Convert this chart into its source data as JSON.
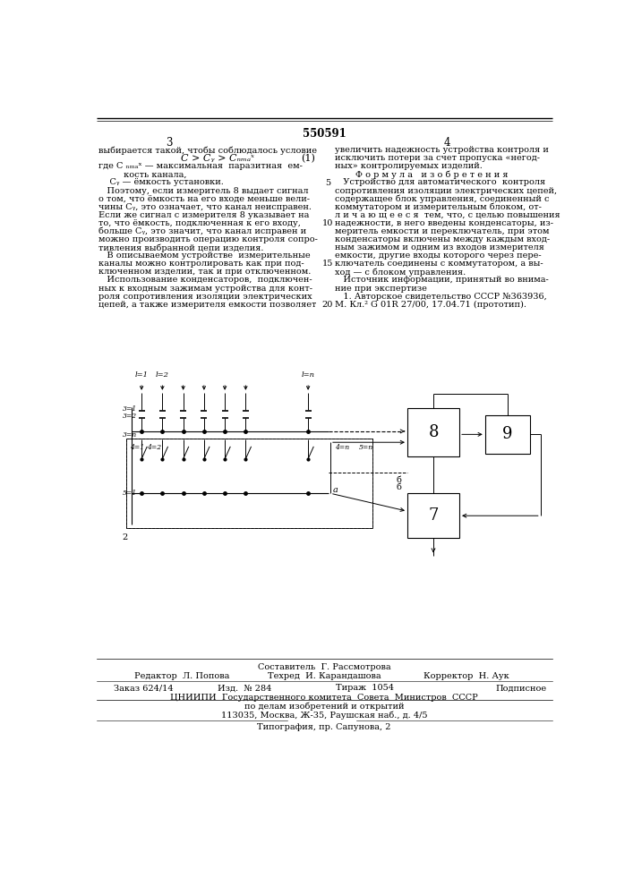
{
  "title": "550591",
  "page_numbers": [
    "3",
    "4"
  ],
  "col1_lines": [
    "выбирается такой, чтобы соблюдалось условие"
  ],
  "col1_formula": "C > Cᵧ > Cₙₘₐˣ",
  "col1_formula_num": "(1)",
  "col1_lines2": [
    "где C ₙₘₐˣ — максимальная  паразитная  ем-",
    "         кость канала,",
    "    Cᵧ — ёмкость установки.",
    "   Поэтому, если измеритель 8 выдает сигнал",
    "о том, что ёмкость на его входе меньше вели-",
    "чины Cᵧ, это означает, что канал неисправен.",
    "Если же сигнал с измерителя 8 указывает на",
    "то, что ёмкость, подключенная к его входу,",
    "больше Cᵧ, это значит, что канал исправен и",
    "можно производить операцию контроля сопро-",
    "тивления выбранной цепи изделия.",
    "   В описываемом устройстве  измерительные",
    "каналы можно контролировать как при под-",
    "ключенном изделии, так и при отключенном.",
    "   Использование конденсаторов,  подключен-",
    "ных к входным зажимам устройства для конт-",
    "роля сопротивления изоляции электрических",
    "цепей, а также измерителя емкости позволяет"
  ],
  "col2_lines": [
    "увеличить надежность устройства контроля и",
    "исключить потери за счет пропуска «негод-",
    "ных» контролируемых изделий.",
    "Ф о р м у л а   и з о б р е т е н и я",
    "   Устройство для автоматического  контроля",
    "сопротивления изоляции электрических цепей,",
    "содержащее блок управления, соединенный с",
    "коммутатором и измерительным блоком, от-",
    "л и ч а ю щ е е с я  тем, что, с целью повышения",
    "надежности, в него введены конденсаторы, из-",
    "меритель емкости и переключатель, при этом",
    "конденсаторы включены между каждым вход-",
    "ным зажимом и одним из входов измерителя",
    "емкости, другие входы которого через пере-",
    "ключатель соединены с коммутатором, а вы-",
    "ход — с блоком управления.",
    "   Источник информации, принятый во внима-",
    "ние при экспертизе",
    "   1. Авторское свидетельство СССР №363936,",
    "М. Кл.² G 01R 27/00, 17.04.71 (прототип)."
  ],
  "line_numbers": [
    "5",
    "10",
    "15",
    "20"
  ],
  "bottom_sestavitel": "Составитель  Г. Рассмотрова",
  "bottom_row1": [
    "Редактор  Л. Попова",
    "Техред  И. Карандашова",
    "Корректор  Н. Аук"
  ],
  "bottom_row2": [
    "Заказ 624/14",
    "Изд.  № 284",
    "Тираж  1054",
    "Подписное"
  ],
  "bottom_row3": "ЦНИИПИ  Государственного комитета  Совета  Министров  СССР",
  "bottom_row4": "по делам изобретений и открытий",
  "bottom_row5": "113035, Москва, Ж-35, Раушская наб., д. 4/5",
  "bottom_row6": "Типография, пр. Сапунова, 2",
  "bg_color": "#ffffff",
  "text_color": "#000000"
}
